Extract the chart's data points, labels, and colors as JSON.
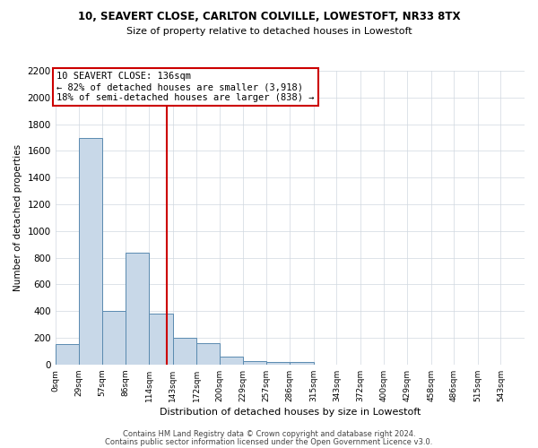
{
  "title": "10, SEAVERT CLOSE, CARLTON COLVILLE, LOWESTOFT, NR33 8TX",
  "subtitle": "Size of property relative to detached houses in Lowestoft",
  "xlabel": "Distribution of detached houses by size in Lowestoft",
  "ylabel": "Number of detached properties",
  "bar_color": "#c8d8e8",
  "bar_edge_color": "#5a8ab0",
  "annotation_line1": "10 SEAVERT CLOSE: 136sqm",
  "annotation_line2": "← 82% of detached houses are smaller (3,918)",
  "annotation_line3": "18% of semi-detached houses are larger (838) →",
  "annotation_box_color": "#ffffff",
  "annotation_box_edge": "#cc0000",
  "vline_x": 136,
  "vline_color": "#cc0000",
  "bin_edges": [
    0,
    29,
    57,
    86,
    114,
    143,
    172,
    200,
    229,
    257,
    286,
    315,
    343,
    372,
    400,
    429,
    458,
    486,
    515,
    543,
    572
  ],
  "bar_heights": [
    150,
    1700,
    400,
    840,
    380,
    200,
    160,
    60,
    25,
    20,
    20,
    0,
    0,
    0,
    0,
    0,
    0,
    0,
    0,
    0
  ],
  "ylim": [
    0,
    2200
  ],
  "yticks": [
    0,
    200,
    400,
    600,
    800,
    1000,
    1200,
    1400,
    1600,
    1800,
    2000,
    2200
  ],
  "footer_line1": "Contains HM Land Registry data © Crown copyright and database right 2024.",
  "footer_line2": "Contains public sector information licensed under the Open Government Licence v3.0.",
  "bg_color": "#ffffff",
  "grid_color": "#d0d8e0"
}
